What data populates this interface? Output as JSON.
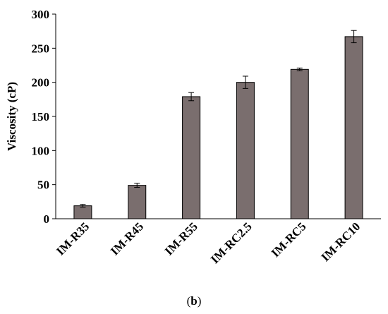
{
  "chart_data": {
    "type": "bar",
    "categories": [
      "IM-R35",
      "IM-R45",
      "IM-R55",
      "IM-RC2.5",
      "IM-RC5",
      "IM-RC10"
    ],
    "values": [
      19,
      49,
      179,
      200,
      219,
      267
    ],
    "errors": [
      2,
      3,
      6,
      9,
      2,
      9
    ],
    "ylabel": "Viscosity (cP)",
    "xlabel": "",
    "ylim": [
      0,
      300
    ],
    "yticks": [
      0,
      50,
      100,
      150,
      200,
      250,
      300
    ],
    "grid": false,
    "bar_color": "#7a6e6e",
    "caption": {
      "open": "(",
      "letter": "b",
      "close": ")"
    }
  }
}
